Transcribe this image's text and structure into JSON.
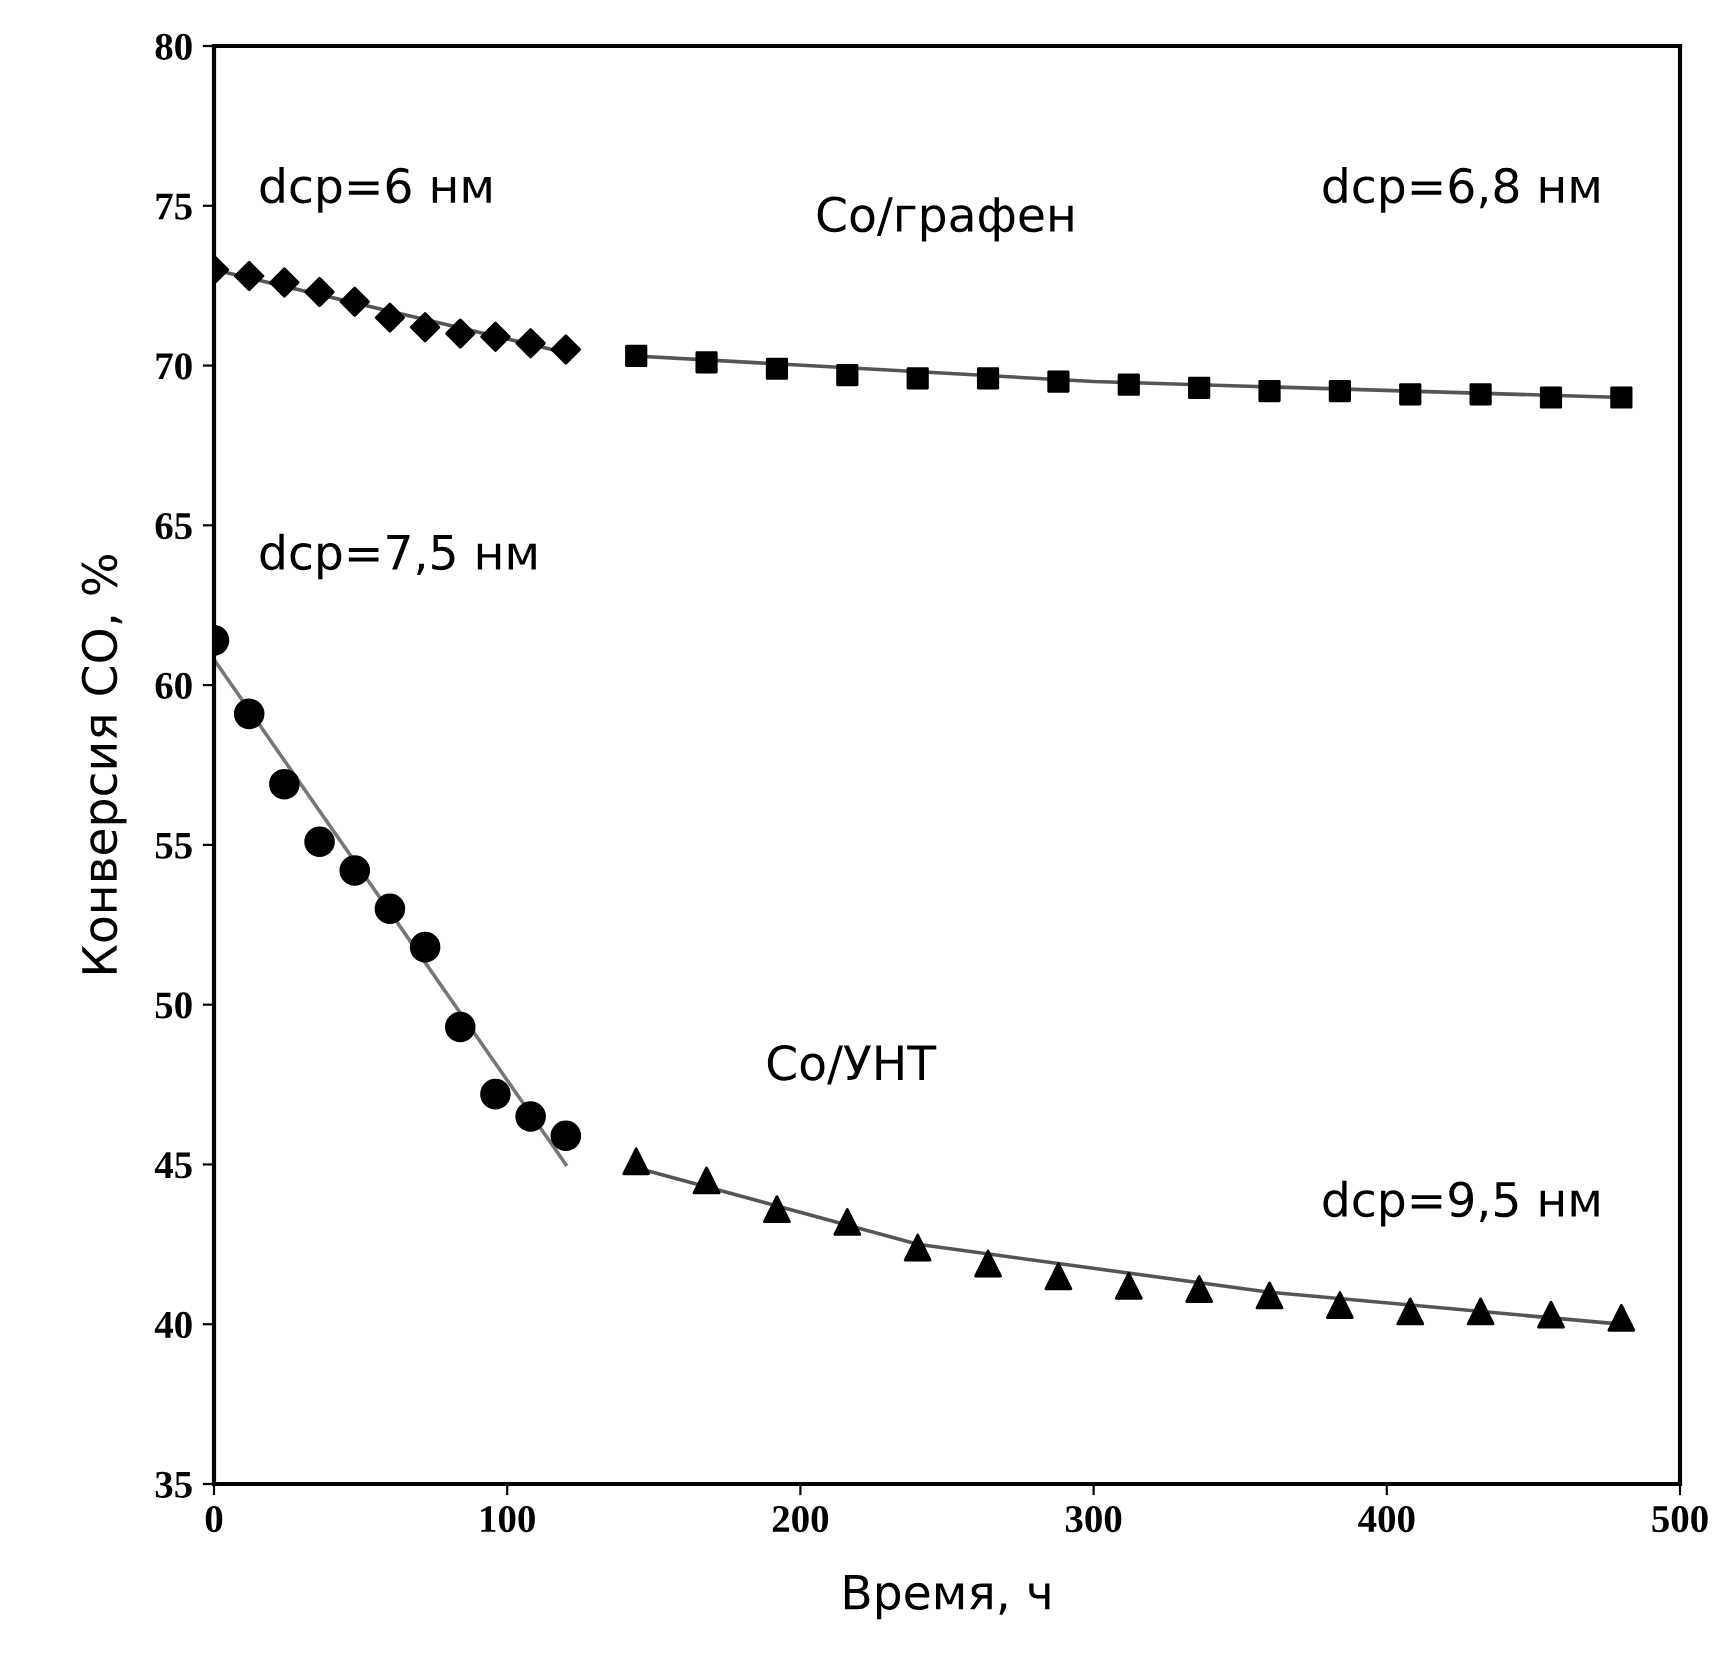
{
  "chart_data": {
    "type": "scatter",
    "xlabel": "Время, ч",
    "ylabel": "Конверсия CO, %",
    "xlim": [
      0,
      500
    ],
    "ylim": [
      35,
      80
    ],
    "xticks": [
      0,
      100,
      200,
      300,
      400,
      500
    ],
    "yticks": [
      35,
      40,
      45,
      50,
      55,
      60,
      65,
      70,
      75,
      80
    ],
    "grid": false,
    "legend": false,
    "series": [
      {
        "type": "line",
        "color": "#555555",
        "marker": "none",
        "x": [
          0,
          60,
          120
        ],
        "values": [
          73.0,
          71.7,
          70.4
        ]
      },
      {
        "type": "line",
        "color": "#555555",
        "marker": "none",
        "x": [
          144,
          300,
          480
        ],
        "values": [
          70.3,
          69.5,
          69.0
        ]
      },
      {
        "type": "line",
        "color": "#777777",
        "marker": "none",
        "x": [
          0,
          120
        ],
        "values": [
          60.8,
          45.0
        ]
      },
      {
        "type": "line",
        "color": "#555555",
        "marker": "none",
        "x": [
          144,
          240,
          360,
          480
        ],
        "values": [
          44.9,
          42.5,
          41.0,
          40.0
        ]
      },
      {
        "color": "#000000",
        "marker": "diamond",
        "x": [
          0,
          12,
          24,
          36,
          48,
          60,
          72,
          84,
          96,
          108,
          120
        ],
        "values": [
          73.0,
          72.8,
          72.6,
          72.3,
          72.0,
          71.5,
          71.2,
          71.0,
          70.9,
          70.7,
          70.5
        ]
      },
      {
        "color": "#000000",
        "marker": "square",
        "x": [
          144,
          168,
          192,
          216,
          240,
          264,
          288,
          312,
          336,
          360,
          384,
          408,
          432,
          456,
          480
        ],
        "values": [
          70.3,
          70.1,
          69.9,
          69.7,
          69.6,
          69.6,
          69.5,
          69.4,
          69.3,
          69.2,
          69.2,
          69.1,
          69.1,
          69.0,
          69.0
        ]
      },
      {
        "color": "#000000",
        "marker": "circle",
        "x": [
          0,
          12,
          24,
          36,
          48,
          60,
          72,
          84,
          96,
          108,
          120
        ],
        "values": [
          61.4,
          59.1,
          56.9,
          55.1,
          54.2,
          53.0,
          51.8,
          49.3,
          47.2,
          46.5,
          45.9
        ]
      },
      {
        "color": "#000000",
        "marker": "triangle",
        "x": [
          144,
          168,
          192,
          216,
          240,
          264,
          288,
          312,
          336,
          360,
          384,
          408,
          432,
          456,
          480
        ],
        "values": [
          45.1,
          44.5,
          43.6,
          43.2,
          42.4,
          41.9,
          41.5,
          41.2,
          41.1,
          40.9,
          40.6,
          40.4,
          40.4,
          40.3,
          40.2
        ]
      }
    ],
    "annotations": [
      "dcp=6 нм",
      "Co/графен",
      "dcp=6,8 нм",
      "dcp=7,5 нм",
      "Co/УНТ",
      "dcp=9,5 нм"
    ]
  }
}
